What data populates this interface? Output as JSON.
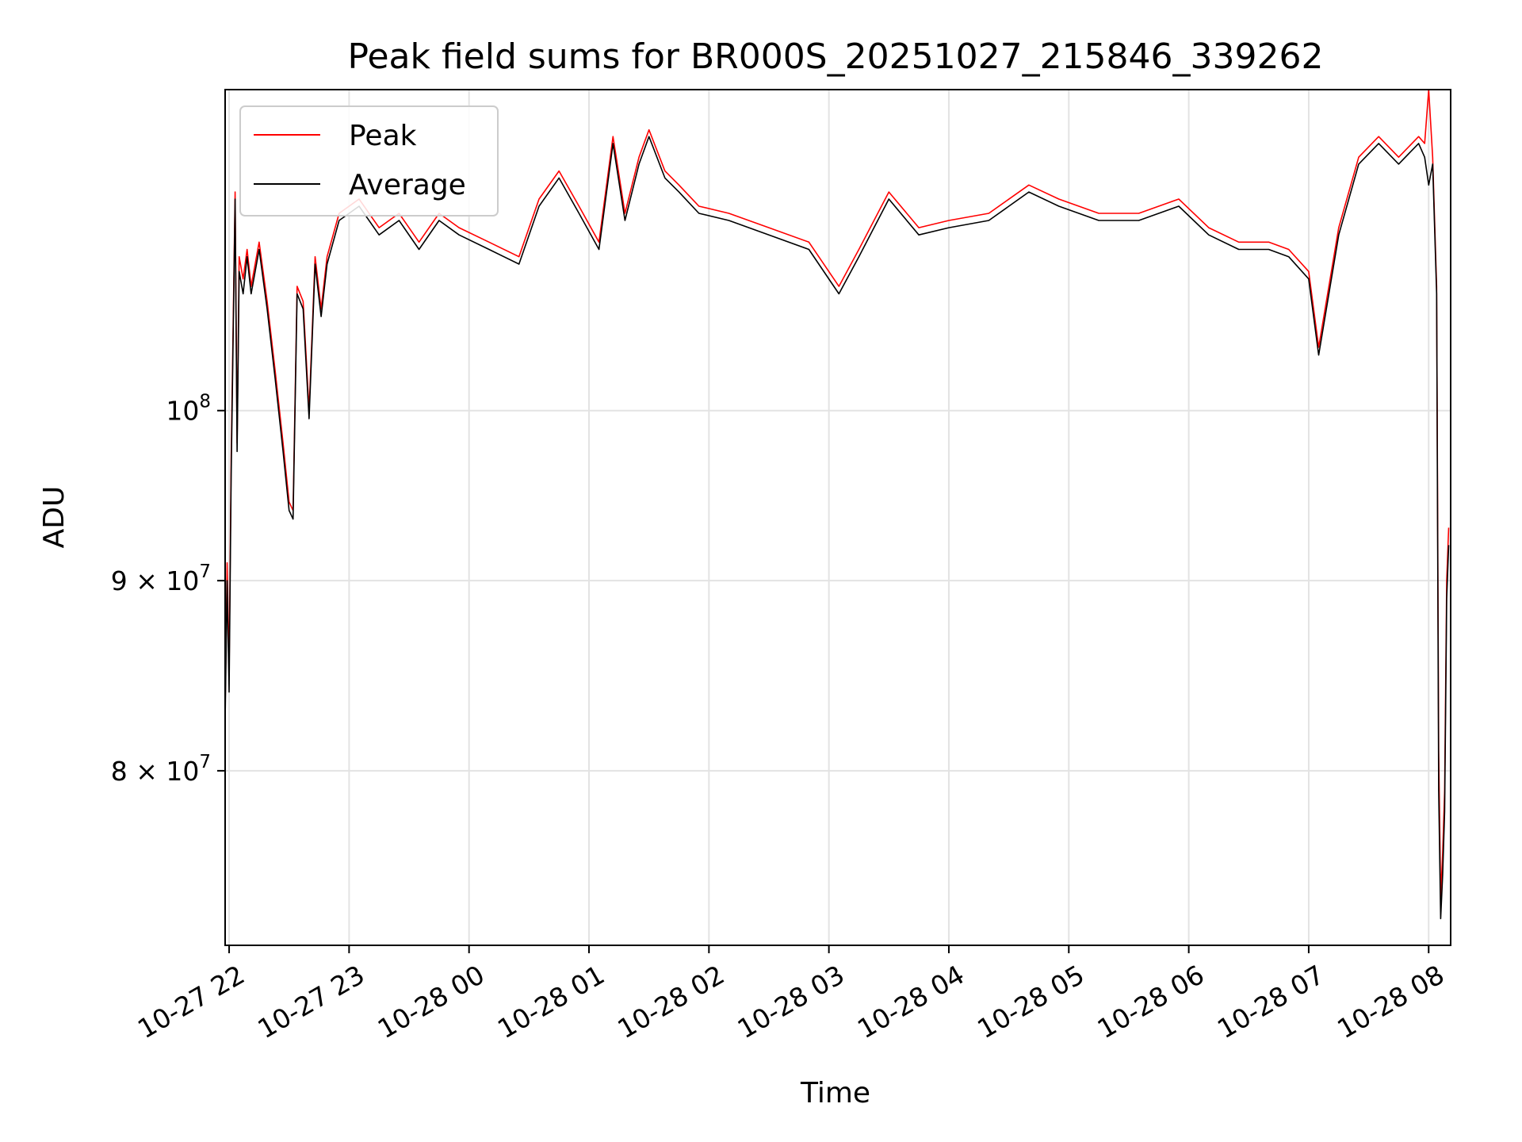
{
  "chart_data": {
    "type": "line",
    "title": "Peak field sums for BR000S_20251027_215846_339262",
    "xlabel": "Time",
    "ylabel": "ADU",
    "yscale": "log",
    "xlim": [
      "2025-10-27 21:58",
      "2025-10-28 08:11"
    ],
    "ylim": [
      71800000,
      122000000
    ],
    "grid": true,
    "legend_position": "top-left",
    "x_ticks": [
      "2025-10-27 22:00",
      "2025-10-27 23:00",
      "2025-10-28 00:00",
      "2025-10-28 01:00",
      "2025-10-28 02:00",
      "2025-10-28 03:00",
      "2025-10-28 04:00",
      "2025-10-28 05:00",
      "2025-10-28 06:00",
      "2025-10-28 07:00",
      "2025-10-28 08:00"
    ],
    "x_tick_labels": [
      "10-27 22",
      "10-27 23",
      "10-28 00",
      "10-28 01",
      "10-28 02",
      "10-28 03",
      "10-28 04",
      "10-28 05",
      "10-28 06",
      "10-28 07",
      "10-28 08"
    ],
    "y_ticks": [
      {
        "value": 80000000,
        "label": "8 × 10",
        "exp": "7"
      },
      {
        "value": 90000000,
        "label": "9 × 10",
        "exp": "7"
      },
      {
        "value": 100000000,
        "label": "10",
        "exp": "8"
      }
    ],
    "x": [
      "2025-10-27 21:58",
      "2025-10-27 21:59",
      "2025-10-27 22:00",
      "2025-10-27 22:01",
      "2025-10-27 22:03",
      "2025-10-27 22:04",
      "2025-10-27 22:05",
      "2025-10-27 22:07",
      "2025-10-27 22:09",
      "2025-10-27 22:11",
      "2025-10-27 22:15",
      "2025-10-27 22:19",
      "2025-10-27 22:23",
      "2025-10-27 22:27",
      "2025-10-27 22:30",
      "2025-10-27 22:32",
      "2025-10-27 22:34",
      "2025-10-27 22:37",
      "2025-10-27 22:40",
      "2025-10-27 22:43",
      "2025-10-27 22:46",
      "2025-10-27 22:49",
      "2025-10-27 22:55",
      "2025-10-27 23:05",
      "2025-10-27 23:15",
      "2025-10-27 23:25",
      "2025-10-27 23:35",
      "2025-10-27 23:45",
      "2025-10-27 23:55",
      "2025-10-28 00:10",
      "2025-10-28 00:25",
      "2025-10-28 00:35",
      "2025-10-28 00:45",
      "2025-10-28 00:55",
      "2025-10-28 01:05",
      "2025-10-28 01:12",
      "2025-10-28 01:18",
      "2025-10-28 01:25",
      "2025-10-28 01:30",
      "2025-10-28 01:38",
      "2025-10-28 01:45",
      "2025-10-28 01:55",
      "2025-10-28 02:10",
      "2025-10-28 02:30",
      "2025-10-28 02:50",
      "2025-10-28 03:05",
      "2025-10-28 03:15",
      "2025-10-28 03:30",
      "2025-10-28 03:45",
      "2025-10-28 04:00",
      "2025-10-28 04:20",
      "2025-10-28 04:40",
      "2025-10-28 04:55",
      "2025-10-28 05:15",
      "2025-10-28 05:35",
      "2025-10-28 05:55",
      "2025-10-28 06:10",
      "2025-10-28 06:25",
      "2025-10-28 06:40",
      "2025-10-28 06:50",
      "2025-10-28 07:00",
      "2025-10-28 07:05",
      "2025-10-28 07:15",
      "2025-10-28 07:25",
      "2025-10-28 07:35",
      "2025-10-28 07:45",
      "2025-10-28 07:55",
      "2025-10-28 07:58",
      "2025-10-28 08:00",
      "2025-10-28 08:02",
      "2025-10-28 08:04",
      "2025-10-28 08:05",
      "2025-10-28 08:06",
      "2025-10-28 08:07",
      "2025-10-28 08:08",
      "2025-10-28 08:09",
      "2025-10-28 08:10"
    ],
    "series": [
      {
        "name": "Peak",
        "color": "#ff0000",
        "values": [
          83000000,
          91000000,
          85000000,
          97000000,
          114500000,
          98000000,
          110000000,
          108500000,
          110500000,
          108000000,
          111000000,
          107000000,
          102500000,
          98000000,
          94500000,
          94000000,
          108000000,
          107000000,
          100000000,
          110000000,
          106500000,
          110000000,
          113000000,
          114000000,
          112000000,
          113000000,
          111000000,
          113000000,
          112000000,
          111000000,
          110000000,
          114000000,
          116000000,
          113500000,
          111000000,
          118500000,
          113000000,
          117000000,
          119000000,
          116000000,
          115000000,
          113500000,
          113000000,
          112000000,
          111000000,
          108000000,
          110500000,
          114500000,
          112000000,
          112500000,
          113000000,
          115000000,
          114000000,
          113000000,
          113000000,
          114000000,
          112000000,
          111000000,
          111000000,
          110500000,
          109000000,
          104000000,
          112000000,
          117000000,
          118500000,
          117000000,
          118500000,
          118000000,
          122000000,
          117000000,
          108000000,
          81000000,
          74000000,
          76000000,
          79000000,
          90000000,
          93000000
        ]
      },
      {
        "name": "Average",
        "color": "#000000",
        "values": [
          82500000,
          90000000,
          84000000,
          96000000,
          114000000,
          97500000,
          109000000,
          107500000,
          110000000,
          107500000,
          110500000,
          106500000,
          102000000,
          97500000,
          94000000,
          93500000,
          107500000,
          106500000,
          99500000,
          109500000,
          106000000,
          109500000,
          112500000,
          113500000,
          111500000,
          112500000,
          110500000,
          112500000,
          111500000,
          110500000,
          109500000,
          113500000,
          115500000,
          113000000,
          110500000,
          118000000,
          112500000,
          116500000,
          118500000,
          115500000,
          114500000,
          113000000,
          112500000,
          111500000,
          110500000,
          107500000,
          110000000,
          114000000,
          111500000,
          112000000,
          112500000,
          114500000,
          113500000,
          112500000,
          112500000,
          113500000,
          111500000,
          110500000,
          110500000,
          110000000,
          108500000,
          103500000,
          111500000,
          116500000,
          118000000,
          116500000,
          118000000,
          117000000,
          115000000,
          116500000,
          107500000,
          79000000,
          73000000,
          75000000,
          78000000,
          89000000,
          92000000
        ]
      }
    ]
  }
}
